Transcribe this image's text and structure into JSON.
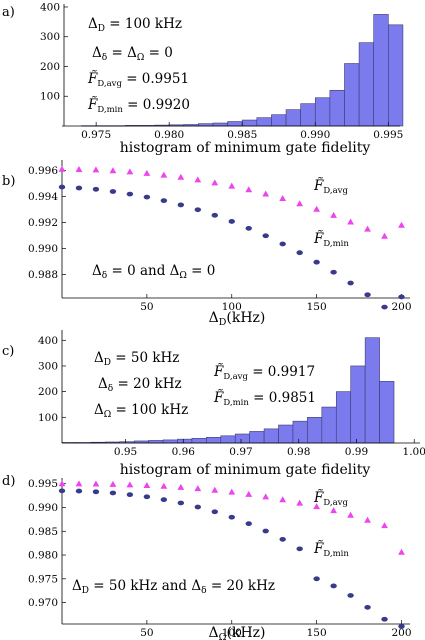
{
  "panels": [
    {
      "label": "a)",
      "chart_data": {
        "type": "bar",
        "xlabel": "histogram of minimum gate fidelity",
        "xlim": [
          0.9728,
          0.9958
        ],
        "ylim": [
          0,
          410
        ],
        "xticks": [
          "0.975",
          "0.980",
          "0.985",
          "0.990",
          "0.995"
        ],
        "xtick_values": [
          0.975,
          0.98,
          0.985,
          0.99,
          0.995
        ],
        "yticks": [
          "100",
          "200",
          "300",
          "400"
        ],
        "ytick_values": [
          100,
          200,
          300,
          400
        ],
        "bar_width": 0.001,
        "bin_centers": [
          0.9745,
          0.9755,
          0.9765,
          0.9775,
          0.9785,
          0.9795,
          0.9805,
          0.9815,
          0.9825,
          0.9835,
          0.9845,
          0.9855,
          0.9865,
          0.9875,
          0.9885,
          0.9895,
          0.9905,
          0.9915,
          0.9925,
          0.9935,
          0.9945,
          0.9955
        ],
        "values": [
          1,
          1,
          1,
          2,
          2,
          3,
          4,
          5,
          8,
          10,
          15,
          20,
          28,
          38,
          55,
          75,
          95,
          120,
          210,
          280,
          375,
          340
        ]
      },
      "annotations": [
        "Δ_D = 100 kHz",
        "Δ_δ = Δ_Ω = 0",
        "F̃_D,avg = 0.9951",
        "F̃_D,min = 0.9920"
      ]
    },
    {
      "label": "b)",
      "chart_data": {
        "type": "scatter",
        "xlabel": "Δ_D(kHz)",
        "xlim": [
          0,
          205
        ],
        "ylim": [
          0.9862,
          0.9968
        ],
        "xticks": [
          "50",
          "100",
          "150",
          "200"
        ],
        "xtick_values": [
          50,
          100,
          150,
          200
        ],
        "yticks": [
          "0.988",
          "0.990",
          "0.992",
          "0.994",
          "0.996"
        ],
        "ytick_values": [
          0.988,
          0.99,
          0.992,
          0.994,
          0.996
        ],
        "series": [
          {
            "name": "F̃_D,avg",
            "marker": "triangle",
            "color": "#ee44ee",
            "x": [
              0,
              10,
              20,
              30,
              40,
              50,
              60,
              70,
              80,
              90,
              100,
              110,
              120,
              130,
              140,
              150,
              160,
              170,
              180,
              190,
              200
            ],
            "y": [
              0.9961,
              0.99608,
              0.99605,
              0.99598,
              0.9959,
              0.99578,
              0.99565,
              0.99548,
              0.99528,
              0.99505,
              0.9948,
              0.99452,
              0.9942,
              0.99385,
              0.99345,
              0.99302,
              0.99255,
              0.99205,
              0.9915,
              0.99095,
              0.9918
            ]
          },
          {
            "name": "F̃_D,min",
            "marker": "ellipse",
            "color": "#3a3a8c",
            "x": [
              0,
              10,
              20,
              30,
              40,
              50,
              60,
              70,
              80,
              90,
              100,
              110,
              120,
              130,
              140,
              150,
              160,
              170,
              180,
              190,
              200
            ],
            "y": [
              0.99472,
              0.99465,
              0.99455,
              0.99438,
              0.99418,
              0.99395,
              0.99368,
              0.99335,
              0.99298,
              0.99255,
              0.99208,
              0.99155,
              0.99098,
              0.99035,
              0.98968,
              0.98895,
              0.98818,
              0.98735,
              0.98645,
              0.9855,
              0.98628
            ]
          }
        ]
      },
      "annotations": [
        "Δ_δ = 0 and Δ_Ω = 0"
      ]
    },
    {
      "label": "c)",
      "chart_data": {
        "type": "bar",
        "xlabel": "histogram of minimum gate fidelity",
        "xlim": [
          0.939,
          1.001
        ],
        "ylim": [
          0,
          440
        ],
        "xticks": [
          "0.95",
          "0.96",
          "0.97",
          "0.98",
          "0.99",
          "1.00"
        ],
        "xtick_values": [
          0.95,
          0.96,
          0.97,
          0.98,
          0.99,
          1.0
        ],
        "yticks": [
          "100",
          "200",
          "300",
          "400"
        ],
        "ytick_values": [
          100,
          200,
          300,
          400
        ],
        "bar_width": 0.0025,
        "bin_centers": [
          0.94025,
          0.94275,
          0.94525,
          0.94775,
          0.95025,
          0.95275,
          0.95525,
          0.95775,
          0.96025,
          0.96275,
          0.96525,
          0.96775,
          0.97025,
          0.97275,
          0.97525,
          0.97775,
          0.98025,
          0.98275,
          0.98525,
          0.98775,
          0.99025,
          0.99275,
          0.99525
        ],
        "values": [
          2,
          2,
          3,
          4,
          5,
          8,
          10,
          12,
          15,
          18,
          22,
          28,
          35,
          45,
          55,
          70,
          85,
          100,
          140,
          200,
          300,
          410,
          240
        ]
      },
      "annotations": [
        "Δ_D = 50 kHz",
        "Δ_δ = 20 kHz",
        "Δ_Ω = 100 kHz",
        "F̃_D,avg = 0.9917",
        "F̃_D,min = 0.9851"
      ]
    },
    {
      "label": "d)",
      "chart_data": {
        "type": "scatter",
        "xlabel": "Δ_Ω(kHz)",
        "xlim": [
          0,
          205
        ],
        "ylim": [
          0.9655,
          0.9962
        ],
        "xticks": [
          "50",
          "100",
          "150",
          "200"
        ],
        "xtick_values": [
          50,
          100,
          150,
          200
        ],
        "yticks": [
          "0.970",
          "0.975",
          "0.980",
          "0.985",
          "0.990",
          "0.995"
        ],
        "ytick_values": [
          0.97,
          0.975,
          0.98,
          0.985,
          0.99,
          0.995
        ],
        "series": [
          {
            "name": "F̃_D,avg",
            "marker": "triangle",
            "color": "#ee44ee",
            "x": [
              0,
              10,
              20,
              30,
              40,
              50,
              60,
              70,
              80,
              90,
              100,
              110,
              120,
              130,
              140,
              150,
              160,
              170,
              180,
              190,
              200
            ],
            "y": [
              0.995,
              0.99498,
              0.99495,
              0.99488,
              0.99478,
              0.99465,
              0.99448,
              0.99425,
              0.99398,
              0.99365,
              0.99325,
              0.99278,
              0.99225,
              0.99165,
              0.99095,
              0.9902,
              0.98935,
              0.9884,
              0.98735,
              0.9862,
              0.9806
            ]
          },
          {
            "name": "F̃_D,min",
            "marker": "ellipse",
            "color": "#3a3a8c",
            "x": [
              0,
              10,
              20,
              30,
              40,
              50,
              60,
              70,
              80,
              90,
              100,
              110,
              120,
              130,
              140,
              150,
              160,
              170,
              180,
              190,
              200
            ],
            "y": [
              0.9935,
              0.99345,
              0.9933,
              0.99305,
              0.9927,
              0.99225,
              0.99165,
              0.99095,
              0.9901,
              0.9891,
              0.98795,
              0.9866,
              0.98505,
              0.9833,
              0.9813,
              0.975,
              0.9735,
              0.9715,
              0.969,
              0.9665,
              0.965
            ]
          }
        ]
      },
      "annotations": [
        "Δ_D = 50 kHz and Δ_δ = 20 kHz"
      ]
    }
  ]
}
